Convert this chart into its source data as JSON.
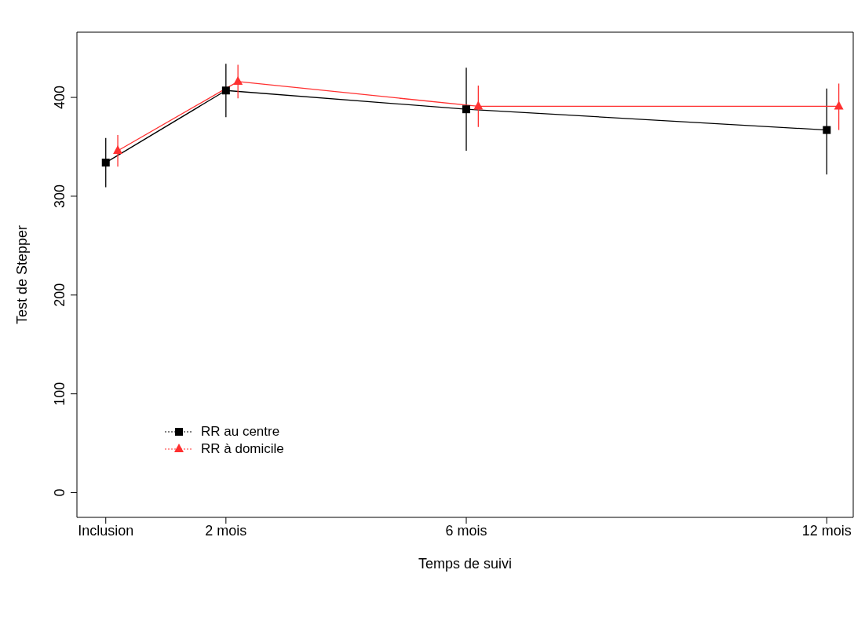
{
  "chart_data": {
    "type": "line",
    "xlabel": "Temps de suivi",
    "ylabel": "Test de Stepper",
    "xlim": [
      -0.48,
      12.44
    ],
    "xticks": [
      {
        "value": 0,
        "label": "Inclusion"
      },
      {
        "value": 2,
        "label": "2 mois"
      },
      {
        "value": 6,
        "label": "6 mois"
      },
      {
        "value": 12,
        "label": "12 mois"
      }
    ],
    "ylim": [
      -25,
      466
    ],
    "yticks": [
      0,
      100,
      200,
      300,
      400
    ],
    "series": [
      {
        "name": "RR au centre",
        "color": "#000000",
        "marker": "square",
        "x": [
          0,
          2,
          6,
          12
        ],
        "values": [
          334,
          407,
          388,
          367
        ],
        "errors": [
          [
            309,
            359
          ],
          [
            380,
            434
          ],
          [
            346,
            430
          ],
          [
            322,
            409
          ]
        ]
      },
      {
        "name": "RR à domicile",
        "color": "#ff3030",
        "marker": "triangle",
        "x": [
          0.2,
          2.2,
          6.2,
          12.2
        ],
        "values": [
          346,
          416,
          391,
          391
        ],
        "errors": [
          [
            330,
            362
          ],
          [
            399,
            433
          ],
          [
            370,
            412
          ],
          [
            367,
            414
          ]
        ]
      }
    ],
    "grid": false,
    "legend": "bottom left",
    "line_style": "solid"
  }
}
